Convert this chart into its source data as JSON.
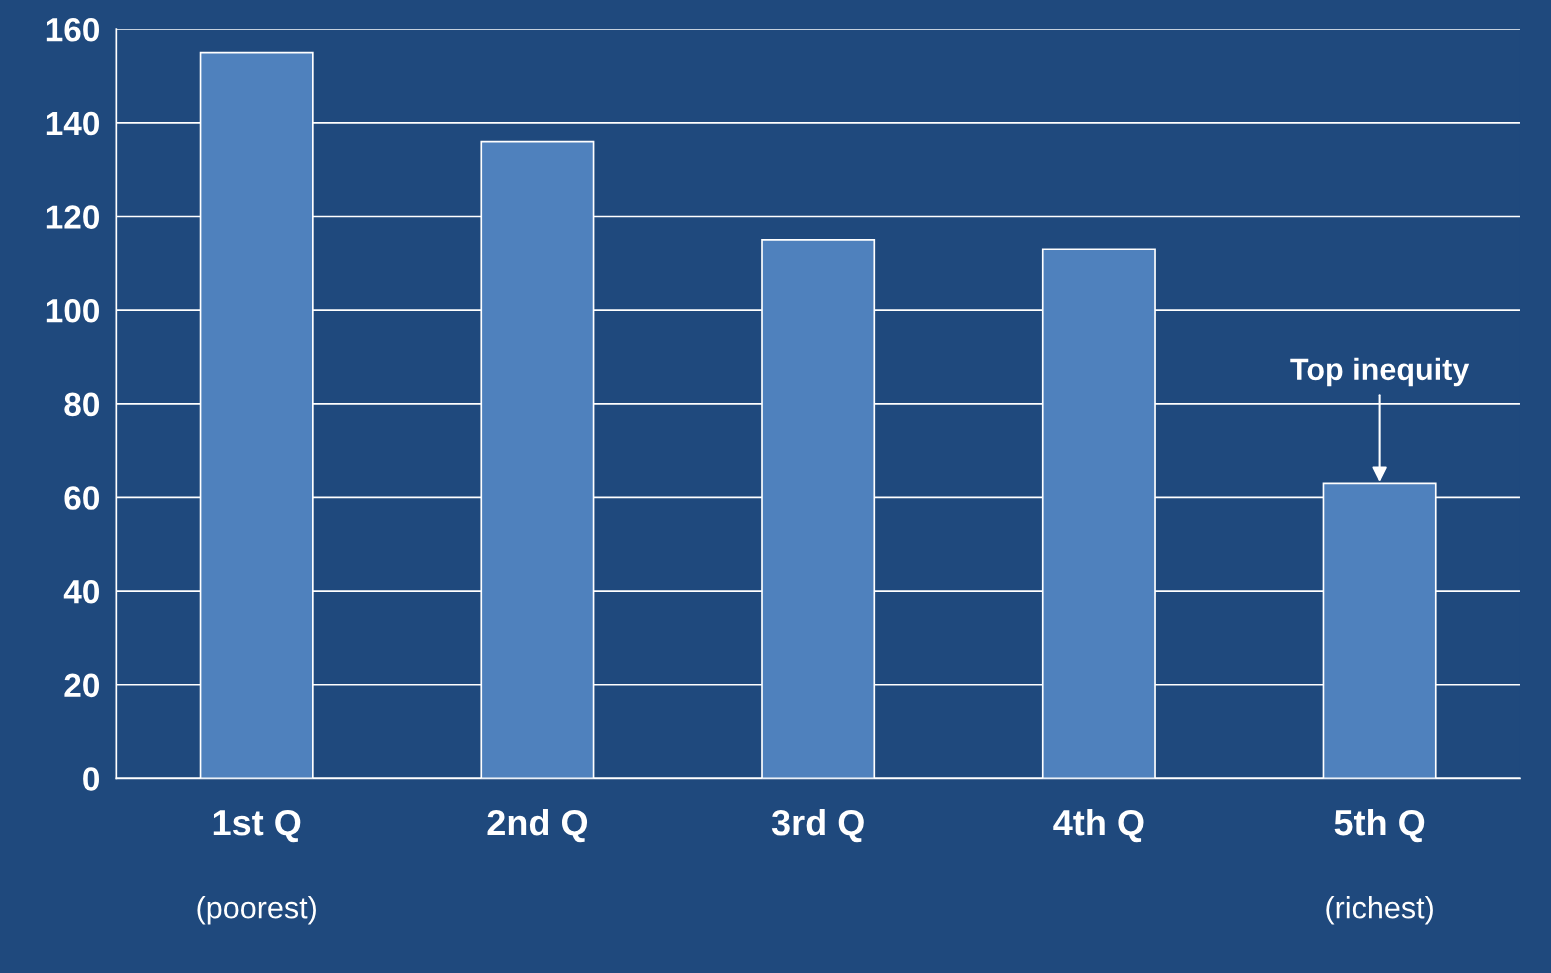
{
  "chart_data": {
    "type": "bar",
    "categories": [
      "1st Q",
      "2nd Q",
      "3rd Q",
      "4th Q",
      "5th Q"
    ],
    "values": [
      155,
      136,
      115,
      113,
      63
    ],
    "color": "#4f81bd",
    "ylim": [
      0,
      160
    ],
    "yticks": [
      0,
      20,
      40,
      60,
      80,
      100,
      120,
      140,
      160
    ],
    "grid": "y",
    "annotations": [
      {
        "text": "Top inequity",
        "x": "5th Q",
        "y": 63
      },
      "(poorest)",
      "(richest)"
    ]
  }
}
